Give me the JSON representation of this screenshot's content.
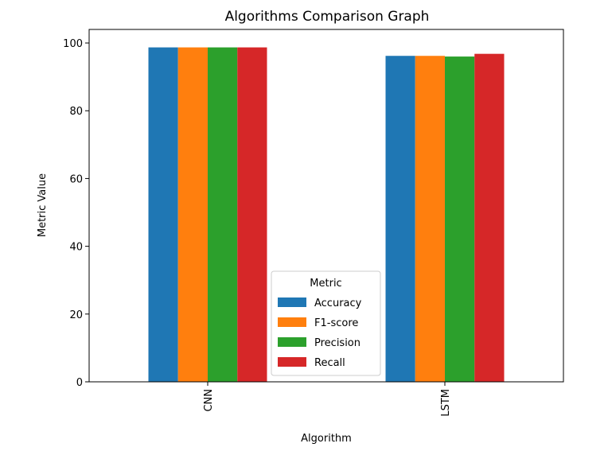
{
  "chart_data": {
    "type": "bar",
    "title": "Algorithms Comparison Graph",
    "xlabel": "Algorithm",
    "ylabel": "Metric Value",
    "ylim": [
      0,
      104
    ],
    "yticks": [
      0,
      20,
      40,
      60,
      80,
      100
    ],
    "categories": [
      "CNN",
      "LSTM"
    ],
    "legend": {
      "title": "Metric",
      "placement": "lower center"
    },
    "grid": false,
    "series": [
      {
        "name": "Accuracy",
        "color": "#1f77b4",
        "values": [
          98.7,
          96.2
        ]
      },
      {
        "name": "F1-score",
        "color": "#ff7f0e",
        "values": [
          98.7,
          96.2
        ]
      },
      {
        "name": "Precision",
        "color": "#2ca02c",
        "values": [
          98.7,
          96.0
        ]
      },
      {
        "name": "Recall",
        "color": "#d62728",
        "values": [
          98.7,
          96.8
        ]
      }
    ]
  }
}
